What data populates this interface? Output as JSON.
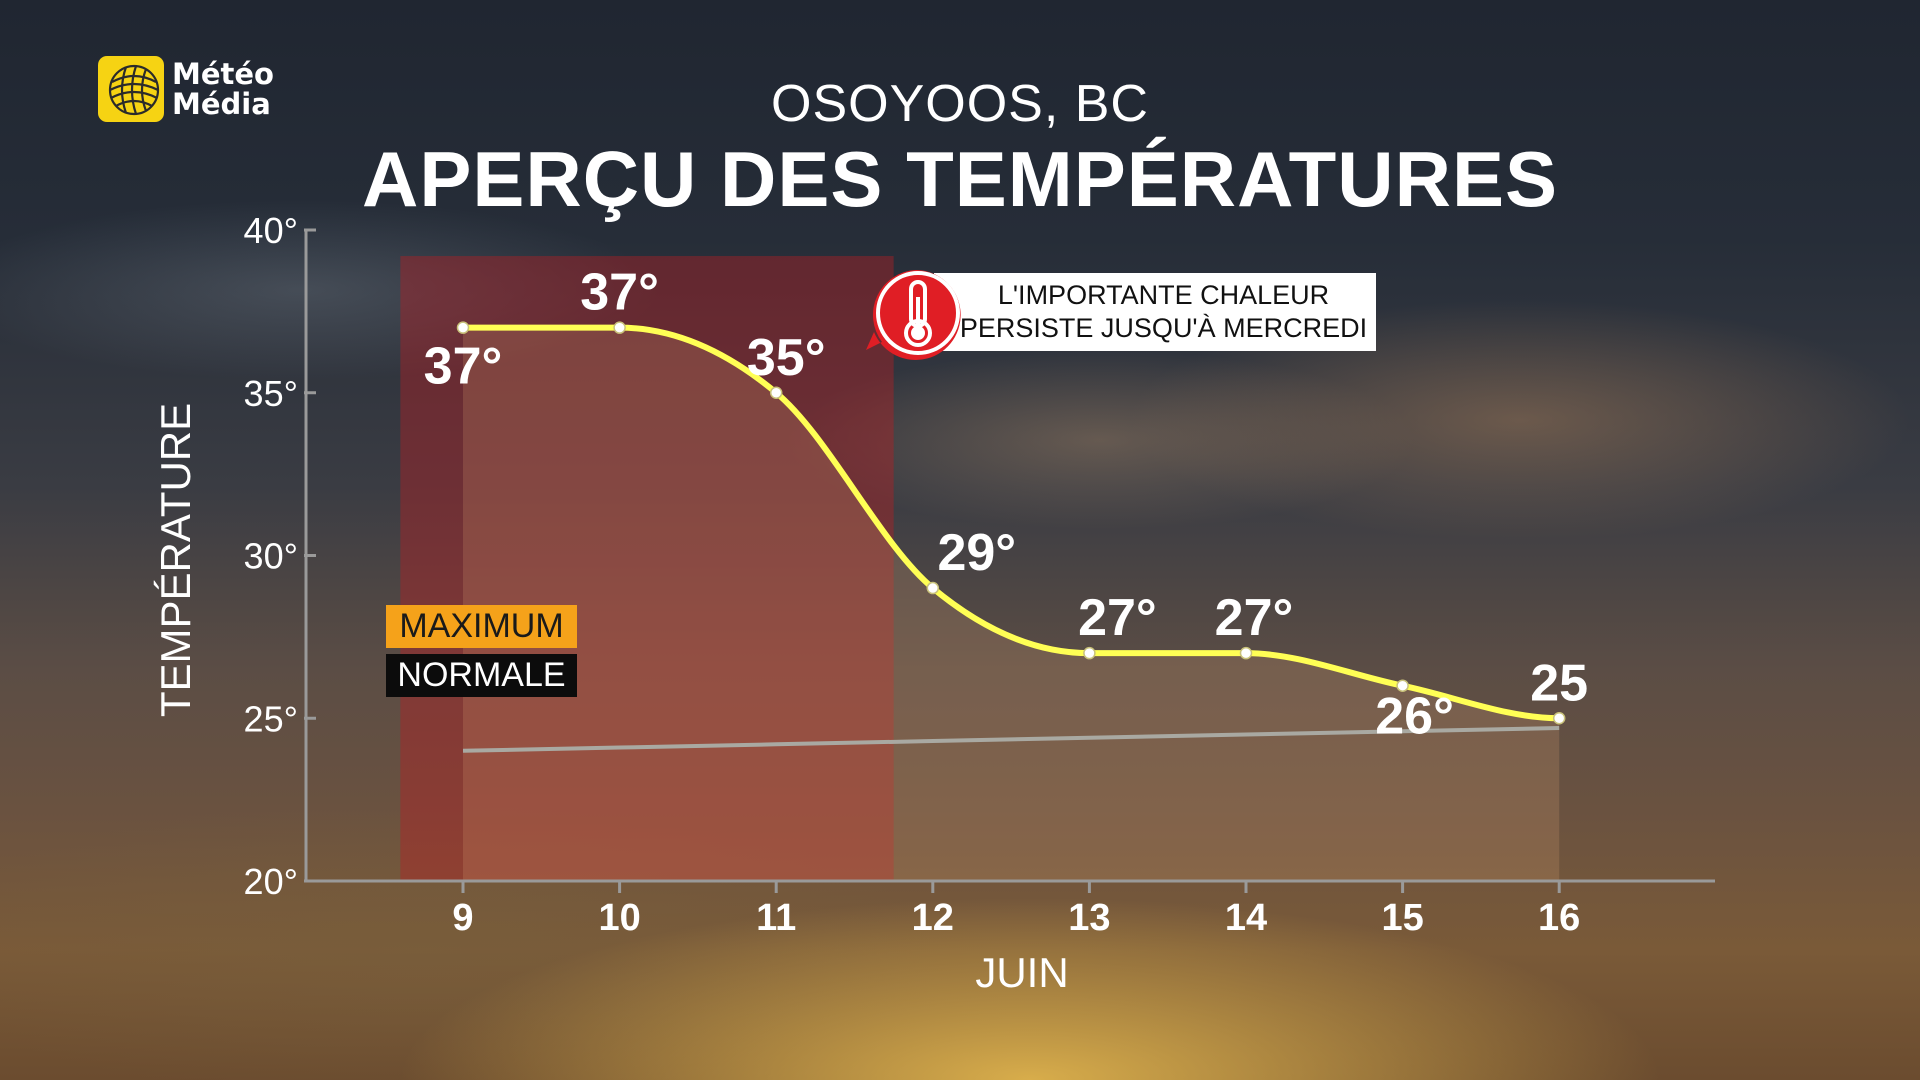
{
  "brand": {
    "logo_line1": "Météo",
    "logo_line2": "Média"
  },
  "header": {
    "location": "OSOYOOS, BC",
    "title": "APERÇU DES TEMPÉRATURES"
  },
  "callout": {
    "line1": "L'IMPORTANTE CHALEUR",
    "line2": "PERSISTE JUSQU'À MERCREDI",
    "icon": "thermometer-icon"
  },
  "legend": {
    "maximum": "MAXIMUM",
    "normale": "NORMALE"
  },
  "colors": {
    "maximum_line": "#ffff55",
    "normal_line": "#a9a9a2",
    "heat_highlight": "#b41e23",
    "legend_maximum_bg": "#f5a21a",
    "alert_red": "#e01e25"
  },
  "chart_data": {
    "type": "line",
    "xlabel": "JUIN",
    "ylabel": "TEMPÉRATURE",
    "ylim": [
      20,
      40
    ],
    "y_ticks": [
      20,
      25,
      30,
      35,
      40
    ],
    "y_tick_labels": [
      "20°",
      "25°",
      "30°",
      "35°",
      "40°"
    ],
    "x": [
      9,
      10,
      11,
      12,
      13,
      14,
      15,
      16
    ],
    "x_tick_labels": [
      "9",
      "10",
      "11",
      "12",
      "13",
      "14",
      "15",
      "16"
    ],
    "series": [
      {
        "name": "MAXIMUM",
        "values": [
          37,
          37,
          35,
          29,
          27,
          27,
          26,
          25
        ],
        "data_labels": [
          "37°",
          "37°",
          "35°",
          "29°",
          "27°",
          "27°",
          "26°",
          "25"
        ]
      },
      {
        "name": "NORMALE",
        "values": [
          24,
          24.1,
          24.2,
          24.3,
          24.4,
          24.5,
          24.6,
          24.7
        ]
      }
    ],
    "highlight_range": {
      "label": "heat warning period",
      "x_start": 8.6,
      "x_end": 11.75
    }
  }
}
